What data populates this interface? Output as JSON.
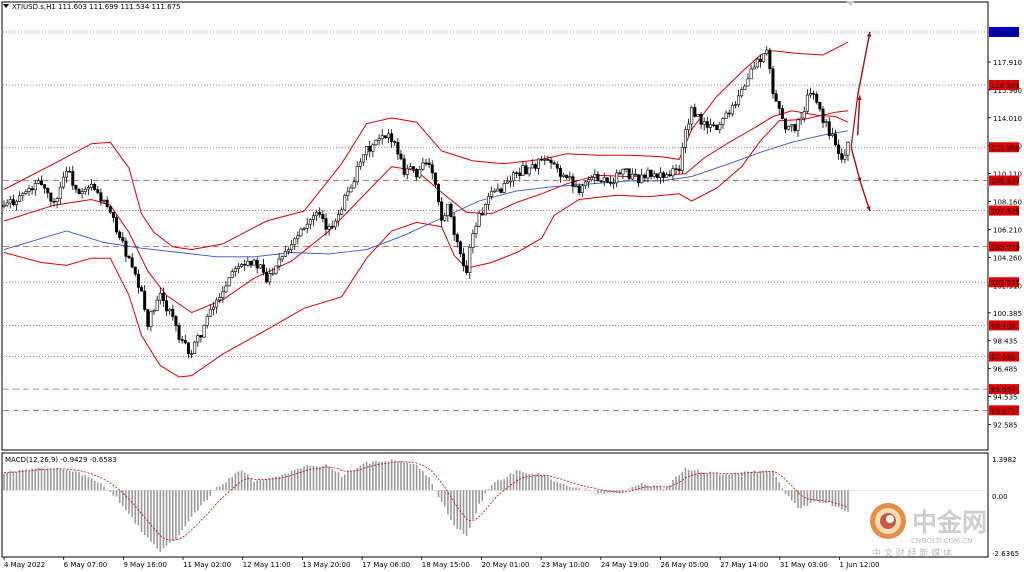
{
  "header": {
    "symbol_line": "XTIUSD.s,H1  111.603 111.699 111.534 111.675"
  },
  "macd": {
    "label": "MACD(12,26,9) -0.9429 -0.6583",
    "axis": [
      "1.3982",
      "0.00",
      "-2.6365"
    ],
    "range": [
      -2.6365,
      1.3982
    ]
  },
  "colors": {
    "candle": "#000000",
    "bollinger": "#dd0000",
    "ma": "#3355cc",
    "level_line": "#c84646",
    "level_label_bg": "#dd0000",
    "target_label_bg": "#0000cc",
    "arrow": "#a01010",
    "macd_hist": "#9a9a9a",
    "macd_signal": "#dd0000"
  },
  "icons": {
    "triangle": "triangle-down-icon",
    "logo": "cngold-logo-icon"
  },
  "watermark": {
    "cn": "中金网",
    "url": "CNGOLD.COM.CN",
    "tagline": "中 文 财 经 新 媒 体"
  },
  "chart_data": {
    "type": "candlestick",
    "symbol": "XTIUSD.s",
    "timeframe": "H1",
    "ohlc_last": {
      "open": 111.603,
      "high": 111.699,
      "low": 111.534,
      "close": 111.675
    },
    "ylim": [
      90.8,
      122.1
    ],
    "price_axis_ticks": [
      "117.910",
      "115.960",
      "114.010",
      "112.060",
      "110.110",
      "108.160",
      "106.210",
      "104.260",
      "102.310",
      "100.385",
      "98.435",
      "96.485",
      "94.535",
      "92.585"
    ],
    "levels": [
      {
        "value": 120.005,
        "label": "120.005",
        "style": "dotted",
        "tag": "target"
      },
      {
        "value": 116.301,
        "label": "116.301",
        "style": "dotted"
      },
      {
        "value": 111.95,
        "label": "111.950",
        "style": "dotted",
        "tag": "current"
      },
      {
        "value": 109.627,
        "label": "109.627",
        "style": "dashed"
      },
      {
        "value": 107.525,
        "label": "107.525",
        "style": "dotted"
      },
      {
        "value": 105.019,
        "label": "105.019",
        "style": "dashed"
      },
      {
        "value": 102.521,
        "label": "102.521",
        "style": "dotted"
      },
      {
        "value": 99.506,
        "label": "99.506",
        "style": "dotted"
      },
      {
        "value": 97.332,
        "label": "97.332",
        "style": "dotted"
      },
      {
        "value": 95.054,
        "label": "95.054",
        "style": "dashed"
      },
      {
        "value": 93.571,
        "label": "93.571",
        "style": "dashed"
      }
    ],
    "time_labels": [
      "4 May 2022",
      "6 May 07:00",
      "9 May 16:00",
      "11 May 02:00",
      "12 May 11:00",
      "13 May 20:00",
      "17 May 06:00",
      "18 May 15:00",
      "20 May 01:00",
      "23 May 10:00",
      "24 May 19:00",
      "26 May 05:00",
      "27 May 14:00",
      "31 May 03:00",
      "1 Jun 12:00"
    ],
    "price_path": [
      [
        0,
        107.8
      ],
      [
        6,
        109.5
      ],
      [
        8,
        108.0
      ],
      [
        10,
        110.5
      ],
      [
        12,
        108.5
      ],
      [
        14,
        109.2
      ],
      [
        16,
        108.1
      ],
      [
        18,
        106.3
      ],
      [
        20,
        104.0
      ],
      [
        22,
        101.6
      ],
      [
        23,
        99.7
      ],
      [
        25,
        101.5
      ],
      [
        27,
        100.2
      ],
      [
        28,
        98.4
      ],
      [
        30,
        97.6
      ],
      [
        33,
        100.4
      ],
      [
        35,
        102.0
      ],
      [
        37,
        103.8
      ],
      [
        39,
        104.1
      ],
      [
        41,
        103.5
      ],
      [
        42,
        102.6
      ],
      [
        44,
        104.3
      ],
      [
        46,
        105.3
      ],
      [
        48,
        106.6
      ],
      [
        50,
        107.2
      ],
      [
        52,
        106.1
      ],
      [
        54,
        107.9
      ],
      [
        56,
        109.8
      ],
      [
        58,
        111.7
      ],
      [
        60,
        112.4
      ],
      [
        62,
        112.7
      ],
      [
        63,
        111.7
      ],
      [
        64,
        110.4
      ],
      [
        65,
        110.6
      ],
      [
        66,
        109.9
      ],
      [
        67,
        111.1
      ],
      [
        68,
        110.6
      ],
      [
        69,
        109.3
      ],
      [
        70,
        106.7
      ],
      [
        71,
        107.7
      ],
      [
        72,
        105.9
      ],
      [
        73,
        104.2
      ],
      [
        74,
        103.5
      ],
      [
        75,
        106.1
      ],
      [
        76,
        107.1
      ],
      [
        77,
        107.8
      ],
      [
        78,
        108.6
      ],
      [
        80,
        109.3
      ],
      [
        82,
        110.2
      ],
      [
        84,
        110.5
      ],
      [
        86,
        111.0
      ],
      [
        88,
        110.6
      ],
      [
        90,
        109.8
      ],
      [
        92,
        109.1
      ],
      [
        93,
        109.6
      ],
      [
        95,
        109.9
      ],
      [
        97,
        109.6
      ],
      [
        99,
        110.3
      ],
      [
        101,
        109.7
      ],
      [
        103,
        110.1
      ],
      [
        104,
        109.9
      ],
      [
        106,
        110.1
      ],
      [
        108,
        110.4
      ],
      [
        109,
        113.2
      ],
      [
        110,
        114.4
      ],
      [
        112,
        113.5
      ],
      [
        114,
        113.3
      ],
      [
        116,
        114.6
      ],
      [
        118,
        115.9
      ],
      [
        120,
        117.7
      ],
      [
        122,
        118.6
      ],
      [
        123,
        115.8
      ],
      [
        124,
        114.6
      ],
      [
        125,
        113.5
      ],
      [
        126,
        113.2
      ],
      [
        127,
        113.7
      ],
      [
        128,
        114.5
      ],
      [
        129,
        116.0
      ],
      [
        131,
        113.9
      ],
      [
        132,
        113.0
      ],
      [
        133,
        112.4
      ],
      [
        134,
        111.3
      ],
      [
        135,
        112.0
      ]
    ],
    "bb_upper": [
      [
        0,
        109.0
      ],
      [
        8,
        110.8
      ],
      [
        14,
        112.2
      ],
      [
        17,
        112.3
      ],
      [
        20,
        110.5
      ],
      [
        22,
        107.3
      ],
      [
        24,
        106.0
      ],
      [
        27,
        105.0
      ],
      [
        30,
        104.8
      ],
      [
        35,
        105.2
      ],
      [
        42,
        106.8
      ],
      [
        48,
        107.5
      ],
      [
        54,
        110.8
      ],
      [
        58,
        113.6
      ],
      [
        62,
        114.0
      ],
      [
        66,
        113.7
      ],
      [
        70,
        111.7
      ],
      [
        75,
        111.0
      ],
      [
        80,
        110.8
      ],
      [
        86,
        111.1
      ],
      [
        90,
        111.5
      ],
      [
        95,
        111.4
      ],
      [
        100,
        111.4
      ],
      [
        105,
        111.3
      ],
      [
        108,
        111.1
      ],
      [
        110,
        113.2
      ],
      [
        114,
        115.5
      ],
      [
        118,
        117.2
      ],
      [
        121,
        118.4
      ],
      [
        123,
        118.7
      ],
      [
        127,
        118.5
      ],
      [
        131,
        118.4
      ],
      [
        135,
        119.3
      ]
    ],
    "bb_lower": [
      [
        0,
        104.6
      ],
      [
        6,
        103.9
      ],
      [
        10,
        103.7
      ],
      [
        14,
        104.2
      ],
      [
        17,
        104.2
      ],
      [
        20,
        101.6
      ],
      [
        22,
        98.8
      ],
      [
        25,
        96.7
      ],
      [
        28,
        95.9
      ],
      [
        30,
        96.0
      ],
      [
        35,
        97.5
      ],
      [
        42,
        99.2
      ],
      [
        48,
        100.7
      ],
      [
        54,
        101.5
      ],
      [
        58,
        104.2
      ],
      [
        62,
        106.1
      ],
      [
        66,
        106.7
      ],
      [
        70,
        106.4
      ],
      [
        72,
        104.4
      ],
      [
        74,
        103.5
      ],
      [
        78,
        103.9
      ],
      [
        82,
        104.6
      ],
      [
        86,
        105.6
      ],
      [
        88,
        107.2
      ],
      [
        92,
        108.3
      ],
      [
        98,
        108.6
      ],
      [
        103,
        108.5
      ],
      [
        108,
        108.7
      ],
      [
        110,
        108.2
      ],
      [
        114,
        109.1
      ],
      [
        118,
        110.6
      ],
      [
        121,
        112.4
      ],
      [
        124,
        113.8
      ],
      [
        128,
        113.9
      ],
      [
        133,
        114.4
      ],
      [
        135,
        114.5
      ]
    ],
    "bb_middle": [
      [
        0,
        106.8
      ],
      [
        8,
        107.9
      ],
      [
        14,
        108.3
      ],
      [
        17,
        107.9
      ],
      [
        20,
        106.0
      ],
      [
        23,
        103.3
      ],
      [
        26,
        101.6
      ],
      [
        30,
        100.4
      ],
      [
        35,
        101.3
      ],
      [
        40,
        102.8
      ],
      [
        46,
        104.0
      ],
      [
        52,
        106.1
      ],
      [
        58,
        108.8
      ],
      [
        62,
        110.6
      ],
      [
        66,
        110.3
      ],
      [
        70,
        108.8
      ],
      [
        74,
        107.4
      ],
      [
        78,
        107.3
      ],
      [
        82,
        108.1
      ],
      [
        86,
        108.7
      ],
      [
        90,
        109.4
      ],
      [
        95,
        110.0
      ],
      [
        100,
        109.9
      ],
      [
        105,
        110.0
      ],
      [
        109,
        110.1
      ],
      [
        112,
        111.2
      ],
      [
        116,
        112.3
      ],
      [
        120,
        113.3
      ],
      [
        123,
        114.1
      ],
      [
        126,
        114.5
      ],
      [
        130,
        114.2
      ],
      [
        133,
        114.1
      ],
      [
        135,
        113.7
      ]
    ],
    "ma_line": [
      [
        0,
        104.8
      ],
      [
        10,
        106.1
      ],
      [
        16,
        105.3
      ],
      [
        22,
        104.9
      ],
      [
        28,
        104.6
      ],
      [
        34,
        104.3
      ],
      [
        40,
        104.3
      ],
      [
        46,
        104.6
      ],
      [
        52,
        104.5
      ],
      [
        58,
        104.8
      ],
      [
        64,
        105.8
      ],
      [
        70,
        107.0
      ],
      [
        76,
        108.2
      ],
      [
        82,
        108.9
      ],
      [
        88,
        109.2
      ],
      [
        94,
        109.4
      ],
      [
        100,
        109.6
      ],
      [
        105,
        109.6
      ],
      [
        110,
        109.9
      ],
      [
        116,
        110.8
      ],
      [
        121,
        111.6
      ],
      [
        126,
        112.3
      ],
      [
        131,
        112.8
      ],
      [
        135,
        113.1
      ]
    ],
    "projection": {
      "from": [
        135.5,
        111.95
      ],
      "up_to": [
        138.5,
        120.0
      ],
      "down_to": [
        138.5,
        107.5
      ]
    },
    "macd_hist": [
      [
        0,
        0.75
      ],
      [
        6,
        0.95
      ],
      [
        10,
        0.9
      ],
      [
        14,
        0.55
      ],
      [
        18,
        -0.3
      ],
      [
        22,
        -1.7
      ],
      [
        25,
        -2.6
      ],
      [
        28,
        -1.9
      ],
      [
        30,
        -1.1
      ],
      [
        34,
        0.1
      ],
      [
        38,
        0.85
      ],
      [
        40,
        0.4
      ],
      [
        44,
        0.55
      ],
      [
        48,
        1.0
      ],
      [
        52,
        1.05
      ],
      [
        54,
        0.6
      ],
      [
        58,
        1.15
      ],
      [
        62,
        1.25
      ],
      [
        66,
        1.05
      ],
      [
        68,
        0.55
      ],
      [
        70,
        -0.5
      ],
      [
        72,
        -1.5
      ],
      [
        74,
        -1.9
      ],
      [
        76,
        -0.6
      ],
      [
        78,
        0.25
      ],
      [
        82,
        0.8
      ],
      [
        86,
        0.65
      ],
      [
        90,
        0.2
      ],
      [
        94,
        -0.05
      ],
      [
        98,
        -0.15
      ],
      [
        102,
        0.25
      ],
      [
        106,
        0.1
      ],
      [
        109,
        0.95
      ],
      [
        112,
        0.75
      ],
      [
        116,
        0.65
      ],
      [
        120,
        0.8
      ],
      [
        123,
        0.85
      ],
      [
        125,
        -0.1
      ],
      [
        127,
        -0.75
      ],
      [
        130,
        -0.45
      ],
      [
        132,
        -0.55
      ],
      [
        135,
        -0.9
      ]
    ]
  }
}
